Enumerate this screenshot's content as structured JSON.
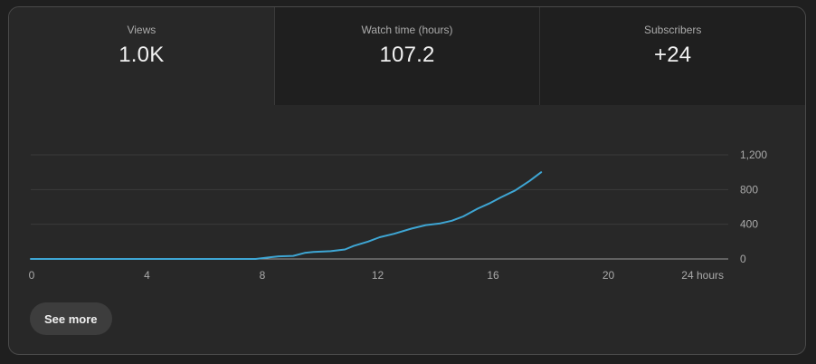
{
  "metrics": [
    {
      "label": "Views",
      "value": "1.0K",
      "active": true
    },
    {
      "label": "Watch time (hours)",
      "value": "107.2",
      "active": false
    },
    {
      "label": "Subscribers",
      "value": "+24",
      "active": false
    }
  ],
  "colors": {
    "line": "#3ea6d4",
    "grid": "#3a3a3a",
    "baseline": "#9a9a9a",
    "tick_text": "#aaaaaa"
  },
  "chart_data": {
    "type": "line",
    "title": "",
    "xlabel": "",
    "ylabel": "",
    "xlim": [
      0,
      24
    ],
    "ylim": [
      0,
      1200
    ],
    "x_ticks": [
      {
        "value": 0,
        "label": "0"
      },
      {
        "value": 4,
        "label": "4"
      },
      {
        "value": 8,
        "label": "8"
      },
      {
        "value": 12,
        "label": "12"
      },
      {
        "value": 16,
        "label": "16"
      },
      {
        "value": 20,
        "label": "20"
      },
      {
        "value": 24,
        "label": "24 hours"
      }
    ],
    "y_ticks": [
      {
        "value": 0,
        "label": "0"
      },
      {
        "value": 400,
        "label": "400"
      },
      {
        "value": 800,
        "label": "800"
      },
      {
        "value": 1200,
        "label": "1,200"
      }
    ],
    "grid": true,
    "series": [
      {
        "x": [
          0,
          7.8,
          8.3,
          8.6,
          9.1,
          9.5,
          9.8,
          10.4,
          10.9,
          11.2,
          11.7,
          12.1,
          12.6,
          13.2,
          13.7,
          14.2,
          14.6,
          15.0,
          15.5,
          15.9,
          16.3,
          16.8,
          17.3,
          17.7
        ],
        "y": [
          0,
          0,
          20,
          30,
          35,
          70,
          80,
          90,
          110,
          150,
          200,
          250,
          290,
          350,
          390,
          410,
          440,
          490,
          580,
          640,
          710,
          790,
          900,
          1000
        ]
      }
    ]
  },
  "see_more": {
    "label": "See more"
  }
}
